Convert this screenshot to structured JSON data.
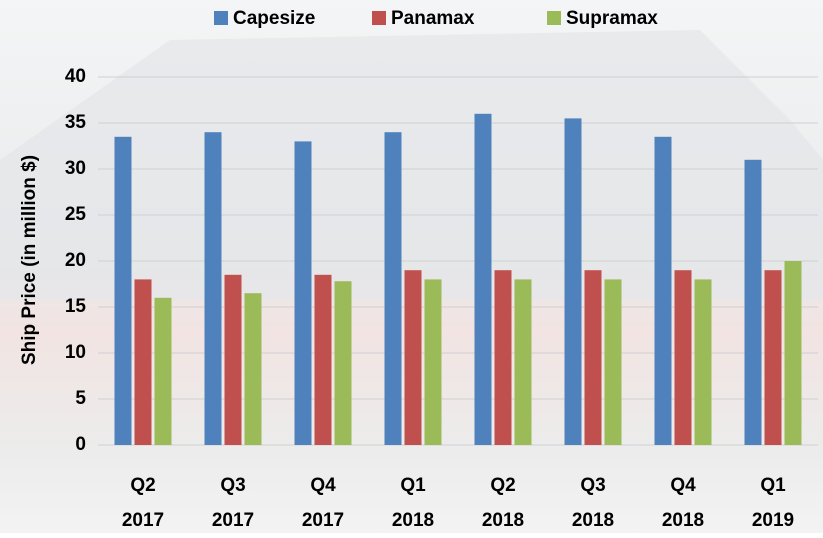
{
  "chart_data": {
    "type": "bar",
    "y_label": "Ship Price (in million $)",
    "categories": [
      [
        "Q2",
        "2017"
      ],
      [
        "Q3",
        "2017"
      ],
      [
        "Q4",
        "2017"
      ],
      [
        "Q1",
        "2018"
      ],
      [
        "Q2",
        "2018"
      ],
      [
        "Q3",
        "2018"
      ],
      [
        "Q4",
        "2018"
      ],
      [
        "Q1",
        "2019"
      ]
    ],
    "series": [
      {
        "name": "Capesize",
        "color": "#4f81bd",
        "values": [
          33.5,
          34,
          33,
          34,
          36,
          35.5,
          33.5,
          31
        ]
      },
      {
        "name": "Panamax",
        "color": "#c0504d",
        "values": [
          18,
          18.5,
          18.5,
          19,
          19,
          19,
          19,
          19
        ]
      },
      {
        "name": "Supramax",
        "color": "#9bbb59",
        "values": [
          16,
          16.5,
          17.8,
          18,
          18,
          18,
          18,
          20
        ]
      }
    ],
    "ylim": [
      0,
      40
    ],
    "yticks": [
      0,
      5,
      10,
      15,
      20,
      25,
      30,
      35,
      40
    ],
    "grid": true,
    "legend": "top"
  }
}
